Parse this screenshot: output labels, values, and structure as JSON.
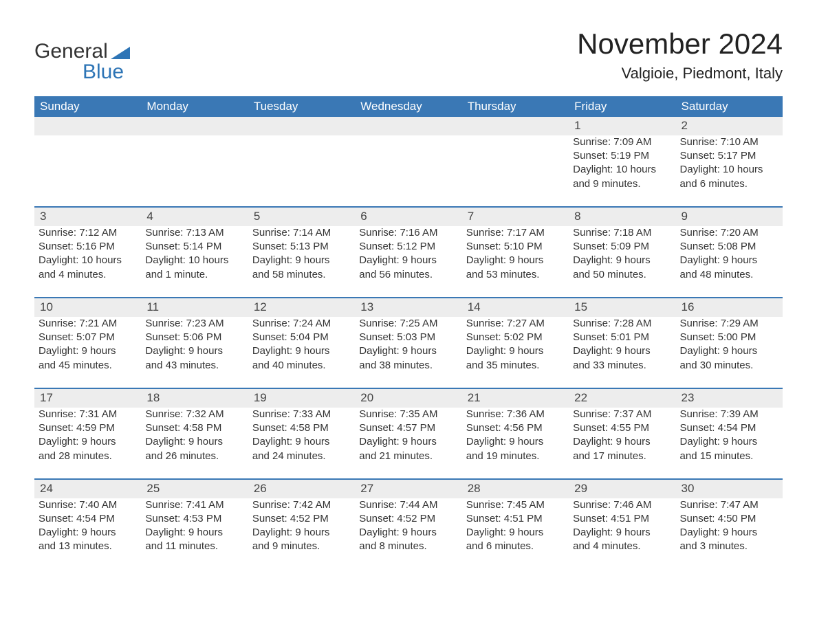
{
  "logo": {
    "word1": "General",
    "word2": "Blue"
  },
  "colors": {
    "header_bg": "#3a78b5",
    "header_text": "#ffffff",
    "row_bg": "#ededed",
    "row_border": "#3a78b5",
    "logo_blue": "#2e75b6",
    "text": "#333333"
  },
  "title": "November 2024",
  "location": "Valgioie, Piedmont, Italy",
  "weekdays": [
    "Sunday",
    "Monday",
    "Tuesday",
    "Wednesday",
    "Thursday",
    "Friday",
    "Saturday"
  ],
  "weeks": [
    [
      null,
      null,
      null,
      null,
      null,
      {
        "n": "1",
        "sr": "Sunrise: 7:09 AM",
        "ss": "Sunset: 5:19 PM",
        "d1": "Daylight: 10 hours",
        "d2": "and 9 minutes."
      },
      {
        "n": "2",
        "sr": "Sunrise: 7:10 AM",
        "ss": "Sunset: 5:17 PM",
        "d1": "Daylight: 10 hours",
        "d2": "and 6 minutes."
      }
    ],
    [
      {
        "n": "3",
        "sr": "Sunrise: 7:12 AM",
        "ss": "Sunset: 5:16 PM",
        "d1": "Daylight: 10 hours",
        "d2": "and 4 minutes."
      },
      {
        "n": "4",
        "sr": "Sunrise: 7:13 AM",
        "ss": "Sunset: 5:14 PM",
        "d1": "Daylight: 10 hours",
        "d2": "and 1 minute."
      },
      {
        "n": "5",
        "sr": "Sunrise: 7:14 AM",
        "ss": "Sunset: 5:13 PM",
        "d1": "Daylight: 9 hours",
        "d2": "and 58 minutes."
      },
      {
        "n": "6",
        "sr": "Sunrise: 7:16 AM",
        "ss": "Sunset: 5:12 PM",
        "d1": "Daylight: 9 hours",
        "d2": "and 56 minutes."
      },
      {
        "n": "7",
        "sr": "Sunrise: 7:17 AM",
        "ss": "Sunset: 5:10 PM",
        "d1": "Daylight: 9 hours",
        "d2": "and 53 minutes."
      },
      {
        "n": "8",
        "sr": "Sunrise: 7:18 AM",
        "ss": "Sunset: 5:09 PM",
        "d1": "Daylight: 9 hours",
        "d2": "and 50 minutes."
      },
      {
        "n": "9",
        "sr": "Sunrise: 7:20 AM",
        "ss": "Sunset: 5:08 PM",
        "d1": "Daylight: 9 hours",
        "d2": "and 48 minutes."
      }
    ],
    [
      {
        "n": "10",
        "sr": "Sunrise: 7:21 AM",
        "ss": "Sunset: 5:07 PM",
        "d1": "Daylight: 9 hours",
        "d2": "and 45 minutes."
      },
      {
        "n": "11",
        "sr": "Sunrise: 7:23 AM",
        "ss": "Sunset: 5:06 PM",
        "d1": "Daylight: 9 hours",
        "d2": "and 43 minutes."
      },
      {
        "n": "12",
        "sr": "Sunrise: 7:24 AM",
        "ss": "Sunset: 5:04 PM",
        "d1": "Daylight: 9 hours",
        "d2": "and 40 minutes."
      },
      {
        "n": "13",
        "sr": "Sunrise: 7:25 AM",
        "ss": "Sunset: 5:03 PM",
        "d1": "Daylight: 9 hours",
        "d2": "and 38 minutes."
      },
      {
        "n": "14",
        "sr": "Sunrise: 7:27 AM",
        "ss": "Sunset: 5:02 PM",
        "d1": "Daylight: 9 hours",
        "d2": "and 35 minutes."
      },
      {
        "n": "15",
        "sr": "Sunrise: 7:28 AM",
        "ss": "Sunset: 5:01 PM",
        "d1": "Daylight: 9 hours",
        "d2": "and 33 minutes."
      },
      {
        "n": "16",
        "sr": "Sunrise: 7:29 AM",
        "ss": "Sunset: 5:00 PM",
        "d1": "Daylight: 9 hours",
        "d2": "and 30 minutes."
      }
    ],
    [
      {
        "n": "17",
        "sr": "Sunrise: 7:31 AM",
        "ss": "Sunset: 4:59 PM",
        "d1": "Daylight: 9 hours",
        "d2": "and 28 minutes."
      },
      {
        "n": "18",
        "sr": "Sunrise: 7:32 AM",
        "ss": "Sunset: 4:58 PM",
        "d1": "Daylight: 9 hours",
        "d2": "and 26 minutes."
      },
      {
        "n": "19",
        "sr": "Sunrise: 7:33 AM",
        "ss": "Sunset: 4:58 PM",
        "d1": "Daylight: 9 hours",
        "d2": "and 24 minutes."
      },
      {
        "n": "20",
        "sr": "Sunrise: 7:35 AM",
        "ss": "Sunset: 4:57 PM",
        "d1": "Daylight: 9 hours",
        "d2": "and 21 minutes."
      },
      {
        "n": "21",
        "sr": "Sunrise: 7:36 AM",
        "ss": "Sunset: 4:56 PM",
        "d1": "Daylight: 9 hours",
        "d2": "and 19 minutes."
      },
      {
        "n": "22",
        "sr": "Sunrise: 7:37 AM",
        "ss": "Sunset: 4:55 PM",
        "d1": "Daylight: 9 hours",
        "d2": "and 17 minutes."
      },
      {
        "n": "23",
        "sr": "Sunrise: 7:39 AM",
        "ss": "Sunset: 4:54 PM",
        "d1": "Daylight: 9 hours",
        "d2": "and 15 minutes."
      }
    ],
    [
      {
        "n": "24",
        "sr": "Sunrise: 7:40 AM",
        "ss": "Sunset: 4:54 PM",
        "d1": "Daylight: 9 hours",
        "d2": "and 13 minutes."
      },
      {
        "n": "25",
        "sr": "Sunrise: 7:41 AM",
        "ss": "Sunset: 4:53 PM",
        "d1": "Daylight: 9 hours",
        "d2": "and 11 minutes."
      },
      {
        "n": "26",
        "sr": "Sunrise: 7:42 AM",
        "ss": "Sunset: 4:52 PM",
        "d1": "Daylight: 9 hours",
        "d2": "and 9 minutes."
      },
      {
        "n": "27",
        "sr": "Sunrise: 7:44 AM",
        "ss": "Sunset: 4:52 PM",
        "d1": "Daylight: 9 hours",
        "d2": "and 8 minutes."
      },
      {
        "n": "28",
        "sr": "Sunrise: 7:45 AM",
        "ss": "Sunset: 4:51 PM",
        "d1": "Daylight: 9 hours",
        "d2": "and 6 minutes."
      },
      {
        "n": "29",
        "sr": "Sunrise: 7:46 AM",
        "ss": "Sunset: 4:51 PM",
        "d1": "Daylight: 9 hours",
        "d2": "and 4 minutes."
      },
      {
        "n": "30",
        "sr": "Sunrise: 7:47 AM",
        "ss": "Sunset: 4:50 PM",
        "d1": "Daylight: 9 hours",
        "d2": "and 3 minutes."
      }
    ]
  ]
}
